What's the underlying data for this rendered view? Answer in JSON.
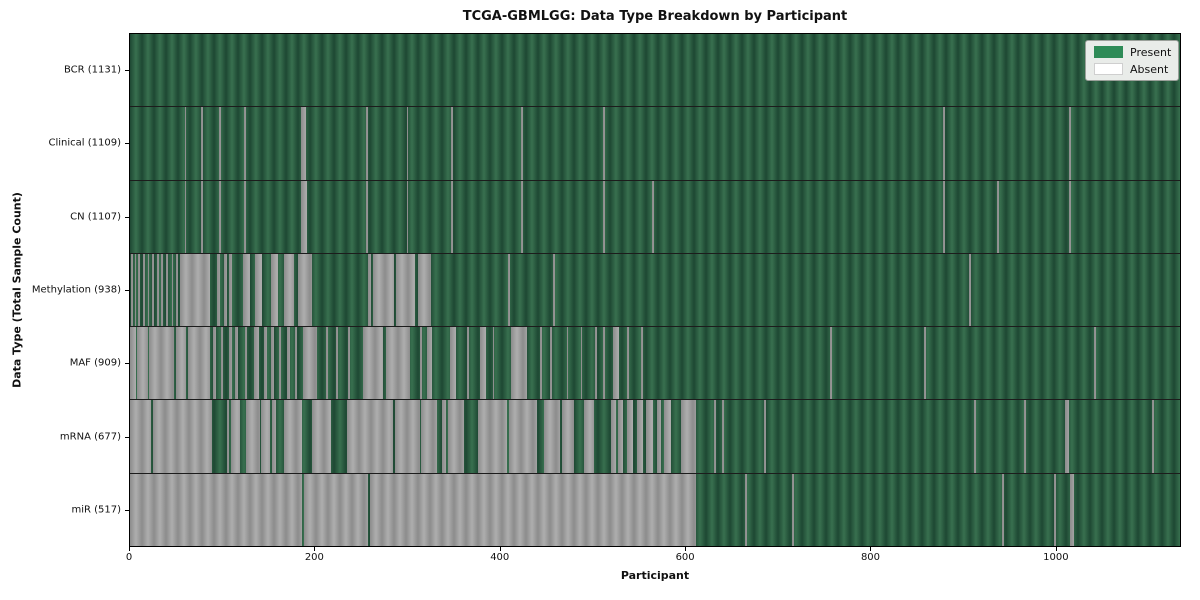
{
  "title": "TCGA-GBMLGG: Data Type Breakdown by Participant",
  "axes": {
    "xlabel": "Participant",
    "ylabel": "Data Type (Total Sample Count)"
  },
  "legend": {
    "items": [
      {
        "label": "Present",
        "color": "#2e8b57"
      },
      {
        "label": "Absent",
        "color": "#ffffff"
      }
    ]
  },
  "colors": {
    "present_dark": "#1e4833",
    "present_light": "#38704f",
    "absent_dark": "#8c8c8c",
    "absent_light": "#aeaeae",
    "legend_present": "#2e8b57",
    "legend_absent": "#ffffff",
    "row_separator": "#1c1c1c"
  },
  "chart_data": {
    "type": "heatmap",
    "title": "TCGA-GBMLGG: Data Type Breakdown by Participant",
    "xlabel": "Participant",
    "ylabel": "Data Type (Total Sample Count)",
    "legend_position": "upper right",
    "x_range": [
      0,
      1135
    ],
    "x_ticks": [
      0,
      200,
      400,
      600,
      800,
      1000
    ],
    "n_participants": 1131,
    "cell_states": [
      "Present",
      "Absent"
    ],
    "rows": [
      {
        "name": "BCR",
        "total": 1131,
        "label": "BCR (1131)",
        "absent_ranges": []
      },
      {
        "name": "Clinical",
        "total": 1109,
        "label": "Clinical (1109)",
        "absent_ranges": [
          [
            59,
            61
          ],
          [
            77,
            79
          ],
          [
            96,
            98
          ],
          [
            123,
            125
          ],
          [
            185,
            190
          ],
          [
            255,
            257
          ],
          [
            299,
            301
          ],
          [
            347,
            349
          ],
          [
            423,
            425
          ],
          [
            511,
            513
          ],
          [
            879,
            881
          ],
          [
            1015,
            1017
          ]
        ]
      },
      {
        "name": "CN",
        "total": 1107,
        "label": "CN (1107)",
        "absent_ranges": [
          [
            59,
            61
          ],
          [
            77,
            79
          ],
          [
            96,
            98
          ],
          [
            123,
            125
          ],
          [
            185,
            191
          ],
          [
            255,
            257
          ],
          [
            299,
            301
          ],
          [
            347,
            349
          ],
          [
            423,
            425
          ],
          [
            511,
            513
          ],
          [
            564,
            566
          ],
          [
            879,
            881
          ],
          [
            937,
            939
          ],
          [
            1015,
            1017
          ]
        ]
      },
      {
        "name": "Methylation",
        "total": 938,
        "label": "Methylation (938)",
        "absent_ranges": [
          [
            1,
            3
          ],
          [
            5,
            7
          ],
          [
            9,
            11
          ],
          [
            14,
            16
          ],
          [
            19,
            21
          ],
          [
            24,
            26
          ],
          [
            29,
            31
          ],
          [
            34,
            36
          ],
          [
            39,
            41
          ],
          [
            45,
            47
          ],
          [
            50,
            52
          ],
          [
            54,
            87
          ],
          [
            94,
            97
          ],
          [
            102,
            105
          ],
          [
            107,
            110
          ],
          [
            122,
            130
          ],
          [
            135,
            143
          ],
          [
            152,
            160
          ],
          [
            166,
            177
          ],
          [
            182,
            197
          ],
          [
            257,
            261
          ],
          [
            263,
            285
          ],
          [
            288,
            308
          ],
          [
            311,
            325
          ],
          [
            409,
            411
          ],
          [
            457,
            459
          ],
          [
            907,
            909
          ]
        ]
      },
      {
        "name": "MAF",
        "total": 909,
        "label": "MAF (909)",
        "absent_ranges": [
          [
            0,
            6
          ],
          [
            8,
            19
          ],
          [
            21,
            48
          ],
          [
            50,
            61
          ],
          [
            63,
            87
          ],
          [
            90,
            93
          ],
          [
            98,
            101
          ],
          [
            107,
            110
          ],
          [
            114,
            117
          ],
          [
            124,
            127
          ],
          [
            134,
            139
          ],
          [
            145,
            148
          ],
          [
            152,
            156
          ],
          [
            161,
            163
          ],
          [
            170,
            173
          ],
          [
            178,
            181
          ],
          [
            187,
            202
          ],
          [
            212,
            214
          ],
          [
            223,
            225
          ],
          [
            236,
            238
          ],
          [
            252,
            274
          ],
          [
            277,
            303
          ],
          [
            313,
            316
          ],
          [
            321,
            326
          ],
          [
            346,
            352
          ],
          [
            364,
            366
          ],
          [
            378,
            385
          ],
          [
            392,
            394
          ],
          [
            412,
            429
          ],
          [
            443,
            445
          ],
          [
            454,
            456
          ],
          [
            472,
            474
          ],
          [
            487,
            489
          ],
          [
            503,
            505
          ],
          [
            511,
            513
          ],
          [
            522,
            529
          ],
          [
            537,
            539
          ],
          [
            552,
            554
          ],
          [
            757,
            759
          ],
          [
            858,
            860
          ],
          [
            1042,
            1044
          ]
        ]
      },
      {
        "name": "mRNA",
        "total": 677,
        "label": "mRNA (677)",
        "absent_ranges": [
          [
            0,
            23
          ],
          [
            25,
            89
          ],
          [
            105,
            107
          ],
          [
            109,
            119
          ],
          [
            125,
            140
          ],
          [
            142,
            151
          ],
          [
            153,
            158
          ],
          [
            166,
            186
          ],
          [
            197,
            217
          ],
          [
            235,
            284
          ],
          [
            286,
            313
          ],
          [
            315,
            332
          ],
          [
            337,
            342
          ],
          [
            344,
            361
          ],
          [
            376,
            408
          ],
          [
            410,
            440
          ],
          [
            448,
            465
          ],
          [
            467,
            480
          ],
          [
            491,
            502
          ],
          [
            520,
            525
          ],
          [
            528,
            533
          ],
          [
            537,
            544
          ],
          [
            548,
            554
          ],
          [
            558,
            565
          ],
          [
            570,
            574
          ],
          [
            577,
            585
          ],
          [
            596,
            612
          ],
          [
            631,
            633
          ],
          [
            640,
            642
          ],
          [
            685,
            687
          ],
          [
            912,
            914
          ],
          [
            966,
            968
          ],
          [
            1011,
            1015
          ],
          [
            1105,
            1107
          ]
        ]
      },
      {
        "name": "miR",
        "total": 517,
        "label": "miR (517)",
        "absent_ranges": [
          [
            0,
            186
          ],
          [
            188,
            257
          ],
          [
            259,
            612
          ],
          [
            665,
            667
          ],
          [
            716,
            718
          ],
          [
            943,
            945
          ],
          [
            999,
            1001
          ],
          [
            1016,
            1020
          ]
        ]
      }
    ]
  }
}
